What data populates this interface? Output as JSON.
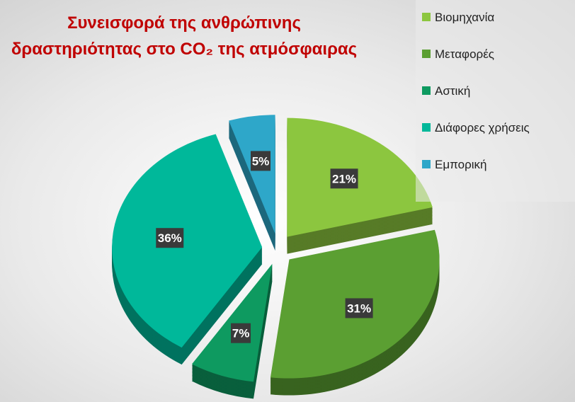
{
  "chart_data": {
    "type": "pie",
    "title": "Συνεισφορά της ανθρώπινης δραστηριότητας στο CO₂ της ατμόσφαιρας",
    "categories": [
      "Βιομηχανία",
      "Μεταφορές",
      "Αστική",
      "Διάφορες χρήσεις",
      "Εμπορική"
    ],
    "values": [
      21,
      31,
      7,
      36,
      5
    ],
    "value_labels": [
      "21%",
      "31%",
      "7%",
      "36%",
      "5%"
    ],
    "colors": [
      "#8cc63f",
      "#5b9f32",
      "#0e9a60",
      "#00b89a",
      "#2ea7c9"
    ],
    "legend": "right"
  }
}
